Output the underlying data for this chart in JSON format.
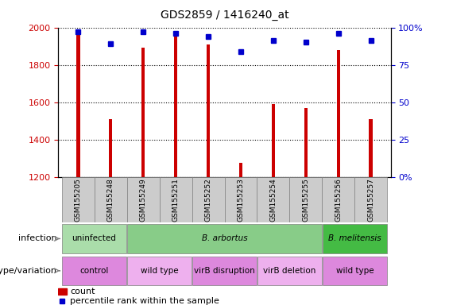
{
  "title": "GDS2859 / 1416240_at",
  "samples": [
    "GSM155205",
    "GSM155248",
    "GSM155249",
    "GSM155251",
    "GSM155252",
    "GSM155253",
    "GSM155254",
    "GSM155255",
    "GSM155256",
    "GSM155257"
  ],
  "counts": [
    1980,
    1510,
    1890,
    1960,
    1910,
    1275,
    1590,
    1570,
    1880,
    1510
  ],
  "percentile_ranks": [
    97,
    89,
    97,
    96,
    94,
    84,
    91,
    90,
    96,
    91
  ],
  "ylim_left": [
    1200,
    2000
  ],
  "ylim_right": [
    0,
    100
  ],
  "bar_color": "#cc0000",
  "dot_color": "#0000cc",
  "infection_groups": [
    {
      "label": "uninfected",
      "start": 0,
      "end": 2,
      "color": "#aaddaa"
    },
    {
      "label": "B. arbortus",
      "start": 2,
      "end": 8,
      "color": "#88cc88"
    },
    {
      "label": "B. melitensis",
      "start": 8,
      "end": 10,
      "color": "#44bb44"
    }
  ],
  "genotype_groups": [
    {
      "label": "control",
      "start": 0,
      "end": 2,
      "color": "#dd88dd"
    },
    {
      "label": "wild type",
      "start": 2,
      "end": 4,
      "color": "#eeb0ee"
    },
    {
      "label": "virB disruption",
      "start": 4,
      "end": 6,
      "color": "#dd88dd"
    },
    {
      "label": "virB deletion",
      "start": 6,
      "end": 8,
      "color": "#eeb0ee"
    },
    {
      "label": "wild type",
      "start": 8,
      "end": 10,
      "color": "#dd88dd"
    }
  ],
  "row_label_infection": "infection",
  "row_label_genotype": "genotype/variation",
  "legend_count_label": "count",
  "legend_percentile_label": "percentile rank within the sample",
  "tick_label_color_left": "#cc0000",
  "tick_label_color_right": "#0000cc",
  "sample_box_color": "#cccccc",
  "yticks_left": [
    1200,
    1400,
    1600,
    1800,
    2000
  ],
  "yticks_right": [
    0,
    25,
    50,
    75,
    100
  ],
  "ytick_right_labels": [
    "0%",
    "25",
    "50",
    "75",
    "100%"
  ]
}
